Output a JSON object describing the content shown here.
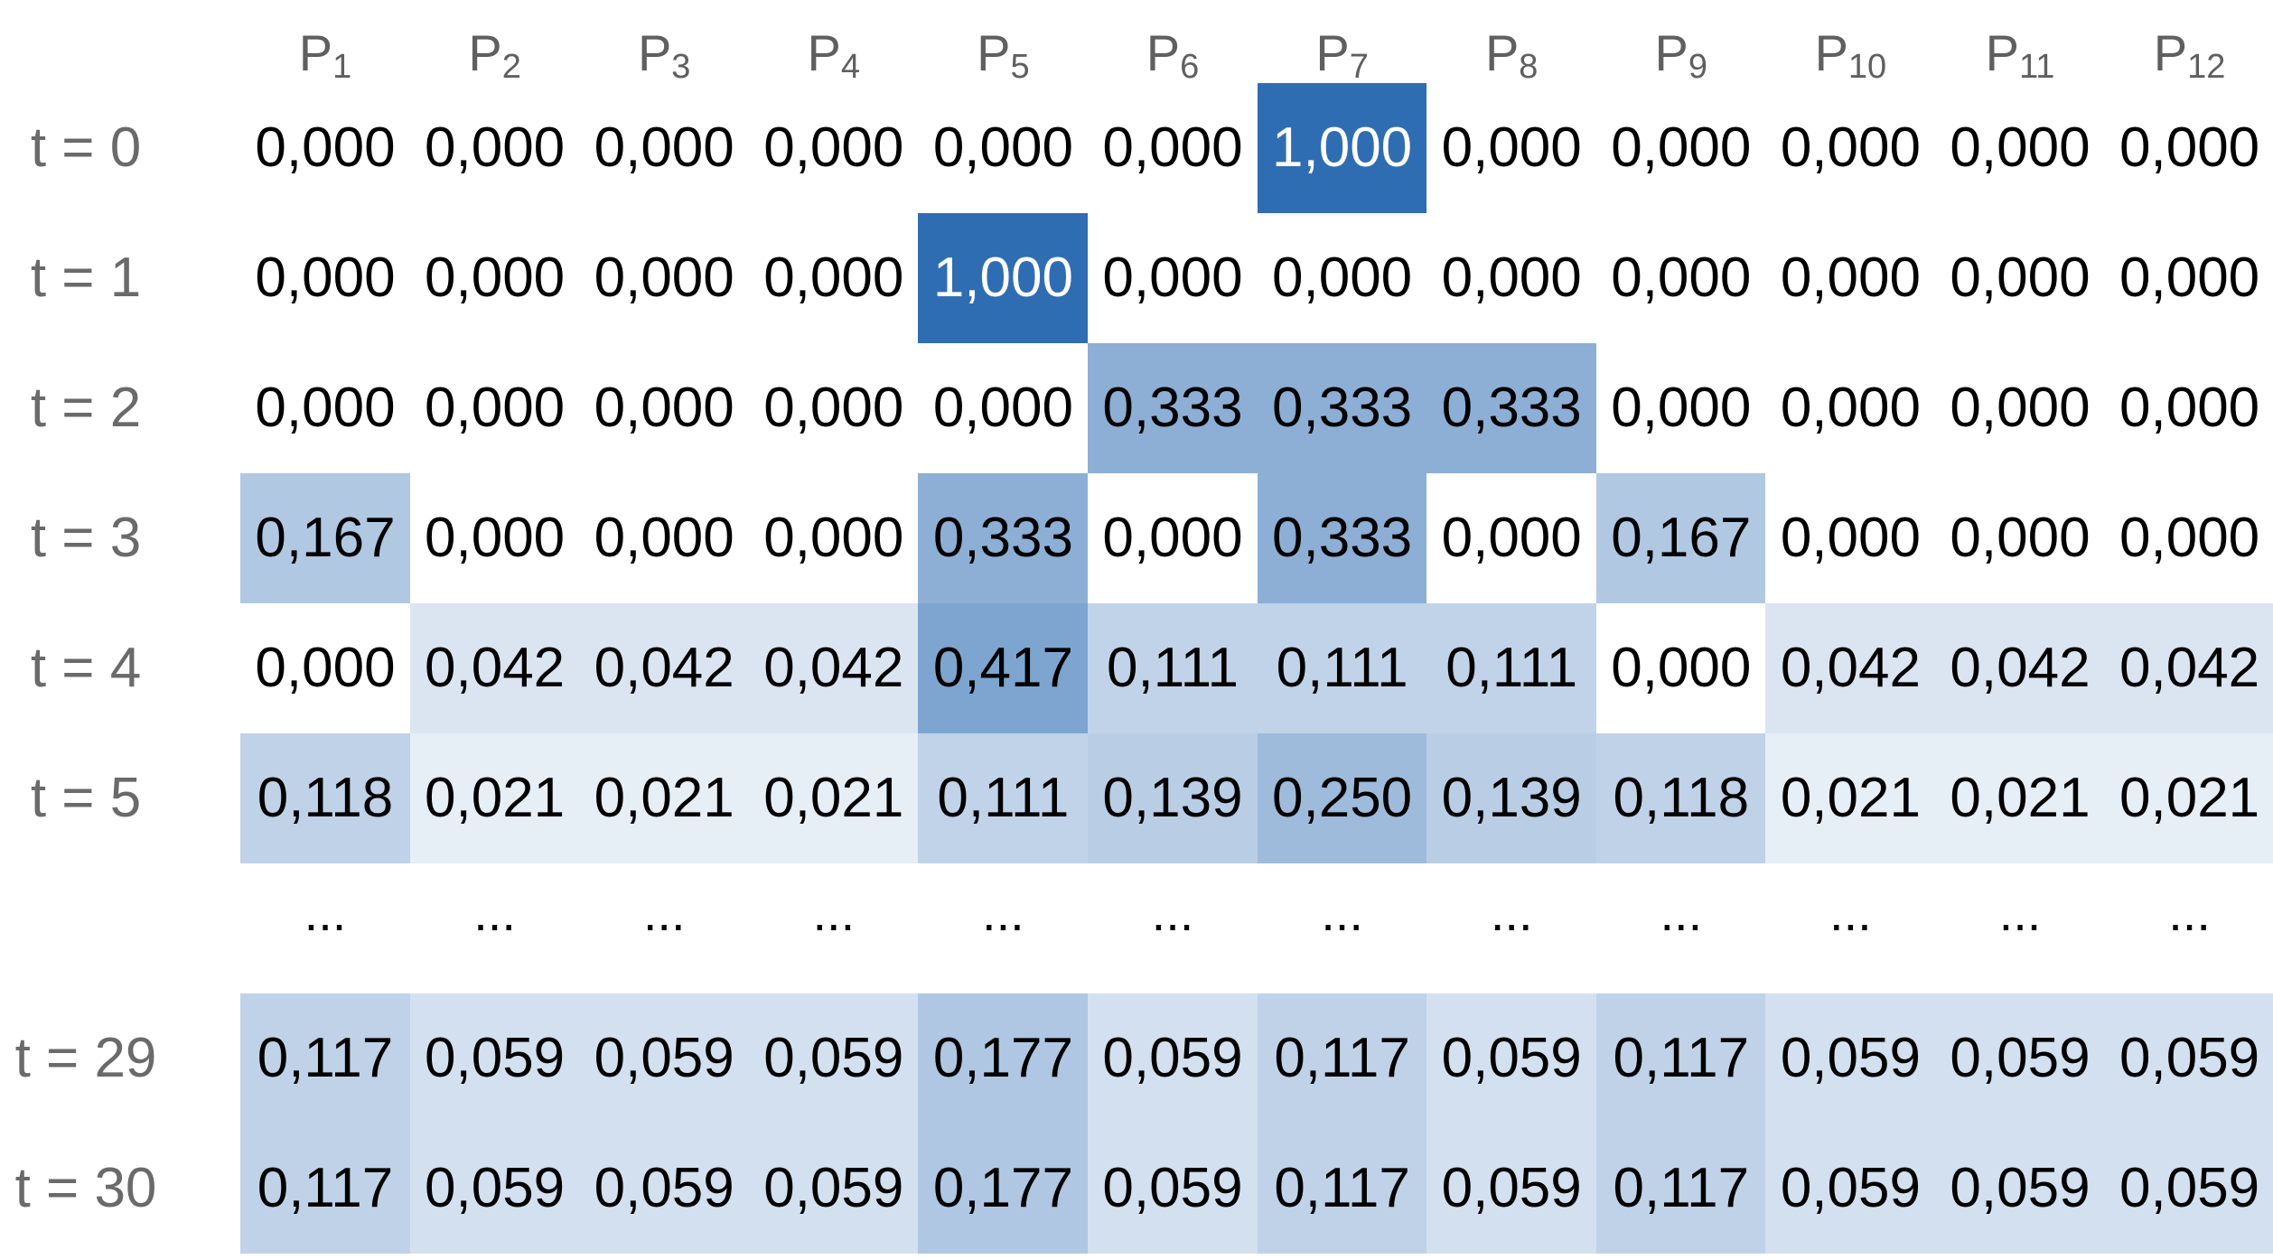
{
  "chart_data": {
    "type": "heatmap",
    "columns": [
      {
        "base": "P",
        "sub": "1"
      },
      {
        "base": "P",
        "sub": "2"
      },
      {
        "base": "P",
        "sub": "3"
      },
      {
        "base": "P",
        "sub": "4"
      },
      {
        "base": "P",
        "sub": "5"
      },
      {
        "base": "P",
        "sub": "6"
      },
      {
        "base": "P",
        "sub": "7"
      },
      {
        "base": "P",
        "sub": "8"
      },
      {
        "base": "P",
        "sub": "9"
      },
      {
        "base": "P",
        "sub": "10"
      },
      {
        "base": "P",
        "sub": "11"
      },
      {
        "base": "P",
        "sub": "12"
      }
    ],
    "rows": [
      {
        "label": "t = 0",
        "values": [
          "0,000",
          "0,000",
          "0,000",
          "0,000",
          "0,000",
          "0,000",
          "1,000",
          "0,000",
          "0,000",
          "0,000",
          "0,000",
          "0,000"
        ]
      },
      {
        "label": "t = 1",
        "values": [
          "0,000",
          "0,000",
          "0,000",
          "0,000",
          "1,000",
          "0,000",
          "0,000",
          "0,000",
          "0,000",
          "0,000",
          "0,000",
          "0,000"
        ]
      },
      {
        "label": "t = 2",
        "values": [
          "0,000",
          "0,000",
          "0,000",
          "0,000",
          "0,000",
          "0,333",
          "0,333",
          "0,333",
          "0,000",
          "0,000",
          "0,000",
          "0,000"
        ]
      },
      {
        "label": "t = 3",
        "values": [
          "0,167",
          "0,000",
          "0,000",
          "0,000",
          "0,333",
          "0,000",
          "0,333",
          "0,000",
          "0,167",
          "0,000",
          "0,000",
          "0,000"
        ]
      },
      {
        "label": "t = 4",
        "values": [
          "0,000",
          "0,042",
          "0,042",
          "0,042",
          "0,417",
          "0,111",
          "0,111",
          "0,111",
          "0,000",
          "0,042",
          "0,042",
          "0,042"
        ]
      },
      {
        "label": "t = 5",
        "values": [
          "0,118",
          "0,021",
          "0,021",
          "0,021",
          "0,111",
          "0,139",
          "0,250",
          "0,139",
          "0,118",
          "0,021",
          "0,021",
          "0,021"
        ]
      },
      {
        "label": "",
        "ellipsis": true,
        "values": [
          "...",
          "...",
          "...",
          "...",
          "...",
          "...",
          "...",
          "...",
          "...",
          "...",
          "...",
          "..."
        ]
      },
      {
        "label": "t = 29",
        "values": [
          "0,117",
          "0,059",
          "0,059",
          "0,059",
          "0,177",
          "0,059",
          "0,117",
          "0,059",
          "0,117",
          "0,059",
          "0,059",
          "0,059"
        ]
      },
      {
        "label": "t = 30",
        "values": [
          "0,117",
          "0,059",
          "0,059",
          "0,059",
          "0,177",
          "0,059",
          "0,117",
          "0,059",
          "0,117",
          "0,059",
          "0,059",
          "0,059"
        ]
      }
    ],
    "color_scale": {
      "min": 0,
      "max": 1,
      "low": "#ffffff",
      "high": "#2f6db3",
      "text_dark": "#000000",
      "text_light": "#ffffff"
    }
  }
}
